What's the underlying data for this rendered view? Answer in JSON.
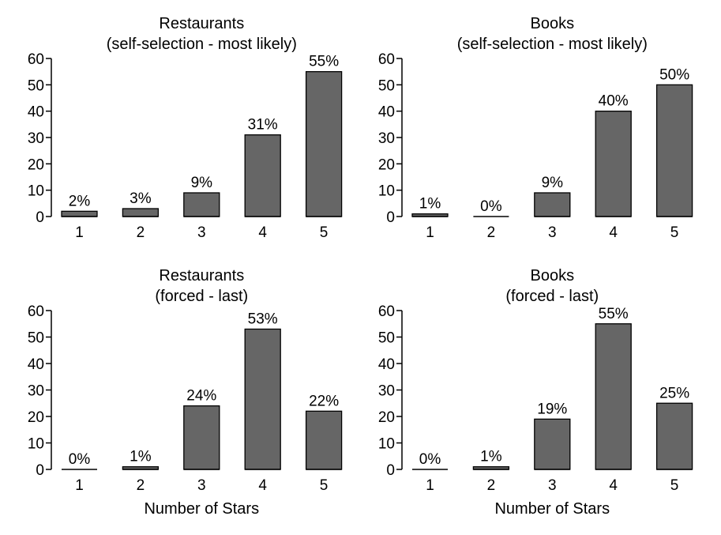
{
  "colors": {
    "bar_fill": "#666666",
    "bar_stroke": "#000000",
    "axis": "#000000"
  },
  "chart_data": [
    {
      "type": "bar",
      "title": "Restaurants",
      "subtitle": "(self-selection - most likely)",
      "categories": [
        "1",
        "2",
        "3",
        "4",
        "5"
      ],
      "values": [
        2,
        3,
        9,
        31,
        55
      ],
      "data_labels": [
        "2%",
        "3%",
        "9%",
        "31%",
        "55%"
      ],
      "yticks": [
        "0",
        "10",
        "20",
        "30",
        "40",
        "50",
        "60"
      ],
      "ylim": [
        0,
        60
      ],
      "xlabel": "",
      "ylabel": ""
    },
    {
      "type": "bar",
      "title": "Books",
      "subtitle": "(self-selection - most likely)",
      "categories": [
        "1",
        "2",
        "3",
        "4",
        "5"
      ],
      "values": [
        1,
        0,
        9,
        40,
        50
      ],
      "data_labels": [
        "1%",
        "0%",
        "9%",
        "40%",
        "50%"
      ],
      "yticks": [
        "0",
        "10",
        "20",
        "30",
        "40",
        "50",
        "60"
      ],
      "ylim": [
        0,
        60
      ],
      "xlabel": "",
      "ylabel": ""
    },
    {
      "type": "bar",
      "title": "Restaurants",
      "subtitle": "(forced - last)",
      "categories": [
        "1",
        "2",
        "3",
        "4",
        "5"
      ],
      "values": [
        0,
        1,
        24,
        53,
        22
      ],
      "data_labels": [
        "0%",
        "1%",
        "24%",
        "53%",
        "22%"
      ],
      "yticks": [
        "0",
        "10",
        "20",
        "30",
        "40",
        "50",
        "60"
      ],
      "ylim": [
        0,
        60
      ],
      "xlabel": "Number of Stars",
      "ylabel": ""
    },
    {
      "type": "bar",
      "title": "Books",
      "subtitle": "(forced - last)",
      "categories": [
        "1",
        "2",
        "3",
        "4",
        "5"
      ],
      "values": [
        0,
        1,
        19,
        55,
        25
      ],
      "data_labels": [
        "0%",
        "1%",
        "19%",
        "55%",
        "25%"
      ],
      "yticks": [
        "0",
        "10",
        "20",
        "30",
        "40",
        "50",
        "60"
      ],
      "ylim": [
        0,
        60
      ],
      "xlabel": "Number of Stars",
      "ylabel": ""
    }
  ]
}
